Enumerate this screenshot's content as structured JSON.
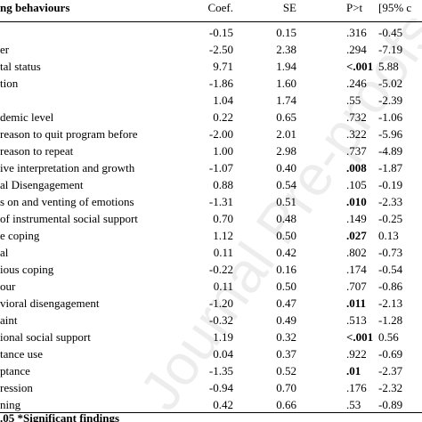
{
  "table": {
    "header": [
      "ng behaviours",
      "Coef.",
      "SE",
      "P>t",
      "[95% c"
    ],
    "rows": [
      {
        "cells": [
          null,
          "-0.15",
          "0.15",
          ".316",
          "-0.45"
        ],
        "significant": false
      },
      {
        "cells": [
          "er",
          "-2.50",
          "2.38",
          ".294",
          "-7.19"
        ],
        "significant": false
      },
      {
        "cells": [
          "tal status",
          "9.71",
          "1.94",
          "<.001",
          "5.88"
        ],
        "significant": true
      },
      {
        "cells": [
          "tion",
          "-1.86",
          "1.60",
          ".246",
          "-5.02"
        ],
        "significant": false
      },
      {
        "cells": [
          null,
          "1.04",
          "1.74",
          ".55",
          "-2.39"
        ],
        "significant": false
      },
      {
        "cells": [
          "demic level",
          "0.22",
          "0.65",
          ".732",
          "-1.06"
        ],
        "significant": false
      },
      {
        "cells": [
          "reason to quit program before",
          "-2.00",
          "2.01",
          ".322",
          "-5.96"
        ],
        "significant": false
      },
      {
        "cells": [
          "reason to repeat",
          "1.00",
          "2.98",
          ".737",
          "-4.89"
        ],
        "significant": false
      },
      {
        "cells": [
          "ive interpretation and growth",
          "-1.07",
          "0.40",
          ".008",
          "-1.87"
        ],
        "significant": true
      },
      {
        "cells": [
          "al Disengagement",
          "0.88",
          "0.54",
          ".105",
          "-0.19"
        ],
        "significant": false
      },
      {
        "cells": [
          "s on and venting of emotions",
          "-1.31",
          "0.51",
          ".010",
          "-2.33"
        ],
        "significant": true
      },
      {
        "cells": [
          "of instrumental social support",
          "0.70",
          "0.48",
          ".149",
          "-0.25"
        ],
        "significant": false
      },
      {
        "cells": [
          "e coping",
          "1.12",
          "0.50",
          ".027",
          "0.13"
        ],
        "significant": true
      },
      {
        "cells": [
          "al",
          "0.11",
          "0.42",
          ".802",
          "-0.73"
        ],
        "significant": false
      },
      {
        "cells": [
          "ious coping",
          "-0.22",
          "0.16",
          ".174",
          "-0.54"
        ],
        "significant": false
      },
      {
        "cells": [
          "our",
          "0.11",
          "0.50",
          ".707",
          "-0.86"
        ],
        "significant": false
      },
      {
        "cells": [
          "vioral disengagement",
          "-1.20",
          "0.47",
          ".011",
          "-2.13"
        ],
        "significant": true
      },
      {
        "cells": [
          "aint",
          "-0.32",
          "0.49",
          ".513",
          "-1.28"
        ],
        "significant": false
      },
      {
        "cells": [
          "ional social support",
          "1.19",
          "0.32",
          "<.001",
          "0.56"
        ],
        "significant": true
      },
      {
        "cells": [
          "tance use",
          "0.04",
          "0.37",
          ".922",
          "-0.69"
        ],
        "significant": false
      },
      {
        "cells": [
          "ptance",
          "-1.35",
          "0.52",
          ".01",
          "-2.37"
        ],
        "significant": true
      },
      {
        "cells": [
          "ression",
          "-0.94",
          "0.70",
          ".176",
          "-2.32"
        ],
        "significant": false
      },
      {
        "cells": [
          "ning",
          "0.42",
          "0.66",
          ".53",
          "-0.89"
        ],
        "significant": false
      }
    ],
    "footer": ".05 *Significant findings"
  },
  "watermark": "Journal Pre-proofs"
}
